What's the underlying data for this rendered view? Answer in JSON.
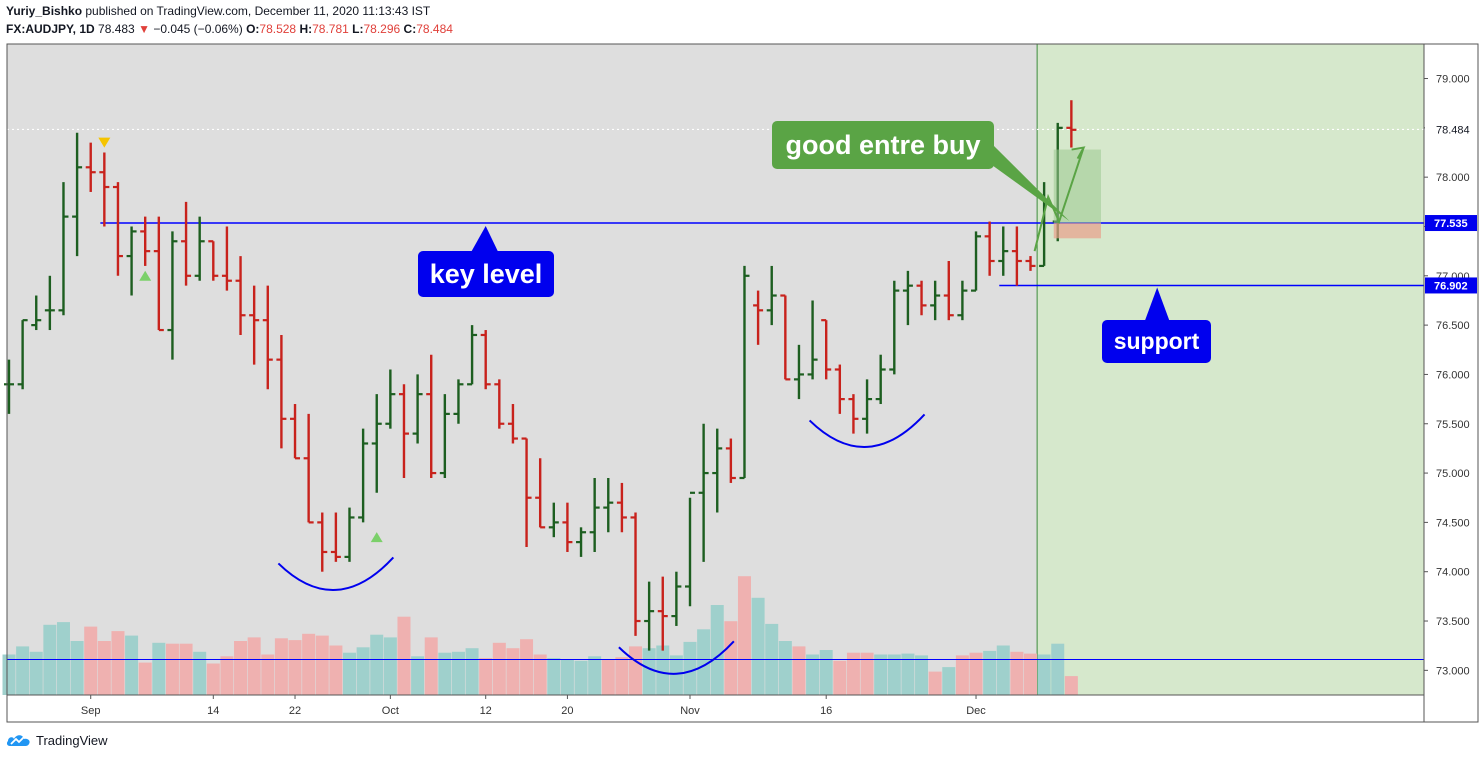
{
  "header": {
    "author": "Yuriy_Bishko",
    "published": "published on TradingView.com, December 11, 2020 11:13:43 IST",
    "symbol": "FX:AUDJPY, 1D",
    "last": "78.483",
    "change_arrow": "▼",
    "change": "−0.045 (−0.06%)",
    "o_label": "O:",
    "o": "78.528",
    "h_label": "H:",
    "h": "78.781",
    "l_label": "L:",
    "l": "78.296",
    "c_label": "C:",
    "c": "78.484"
  },
  "footer": {
    "brand": "TradingView",
    "logo_icon": "tradingview-cloud-icon"
  },
  "annotations": {
    "key_level": "key level",
    "support": "support",
    "buy": "good entre buy"
  },
  "colors": {
    "up": "#1d5e20",
    "down": "#c8221c",
    "vol_up": "#9fd0cc",
    "vol_down": "#efb1b0",
    "level_line": "#0000ff",
    "forecast_bg": "#d6e8cc",
    "plot_bg": "#dedede",
    "callout_blue": "#0000ee",
    "callout_green": "#5aa445"
  },
  "chart_data": {
    "type": "ohlc_bar",
    "symbol": "FX:AUDJPY",
    "interval": "1D",
    "ylim": [
      72.75,
      79.35
    ],
    "y_ticks": [
      "79.000",
      "78.500",
      "78.000",
      "77.500",
      "77.000",
      "76.500",
      "76.000",
      "75.500",
      "75.000",
      "74.500",
      "74.000",
      "73.500",
      "73.000"
    ],
    "y_tick_values": [
      79.0,
      78.5,
      78.0,
      77.5,
      77.0,
      76.5,
      76.0,
      75.5,
      75.0,
      74.5,
      74.0,
      73.5,
      73.0
    ],
    "x_ticks": [
      "Sep",
      "14",
      "22",
      "Oct",
      "12",
      "20",
      "Nov",
      "16",
      "Dec"
    ],
    "x_tick_bar_index": [
      6,
      15,
      21,
      28,
      35,
      41,
      50,
      60,
      71
    ],
    "price_labels": [
      {
        "text": "78.484",
        "value": 78.484,
        "style": "plain"
      },
      {
        "text": "77.535",
        "value": 77.535,
        "style": "box"
      },
      {
        "text": "76.902",
        "value": 76.902,
        "style": "box"
      }
    ],
    "levels": [
      {
        "name": "key level",
        "value": 77.535,
        "from_bar": 7
      },
      {
        "name": "support",
        "value": 76.902,
        "from_bar": 73
      },
      {
        "name": "volume line",
        "value": 73.11,
        "from_bar": 0
      }
    ],
    "forecast_from_bar": 76,
    "bars": [
      {
        "o": 75.9,
        "h": 76.15,
        "l": 75.6,
        "c": 75.9
      },
      {
        "o": 75.9,
        "h": 76.55,
        "l": 75.85,
        "c": 76.55
      },
      {
        "o": 76.5,
        "h": 76.8,
        "l": 76.45,
        "c": 76.55
      },
      {
        "o": 76.65,
        "h": 77.0,
        "l": 76.45,
        "c": 76.65
      },
      {
        "o": 76.65,
        "h": 77.95,
        "l": 76.6,
        "c": 77.6
      },
      {
        "o": 77.6,
        "h": 78.45,
        "l": 77.2,
        "c": 78.1
      },
      {
        "o": 78.1,
        "h": 78.35,
        "l": 77.85,
        "c": 78.05
      },
      {
        "o": 78.05,
        "h": 78.25,
        "l": 77.5,
        "c": 77.9
      },
      {
        "o": 77.9,
        "h": 77.95,
        "l": 77.0,
        "c": 77.2
      },
      {
        "o": 77.2,
        "h": 77.5,
        "l": 76.8,
        "c": 77.45
      },
      {
        "o": 77.45,
        "h": 77.6,
        "l": 77.1,
        "c": 77.25
      },
      {
        "o": 77.25,
        "h": 77.6,
        "l": 76.45,
        "c": 76.45
      },
      {
        "o": 76.45,
        "h": 77.45,
        "l": 76.15,
        "c": 77.35
      },
      {
        "o": 77.35,
        "h": 77.75,
        "l": 76.9,
        "c": 77.0
      },
      {
        "o": 77.0,
        "h": 77.6,
        "l": 76.95,
        "c": 77.35
      },
      {
        "o": 77.35,
        "h": 77.35,
        "l": 76.95,
        "c": 77.0
      },
      {
        "o": 77.0,
        "h": 77.5,
        "l": 76.85,
        "c": 76.95
      },
      {
        "o": 76.95,
        "h": 77.2,
        "l": 76.4,
        "c": 76.6
      },
      {
        "o": 76.6,
        "h": 76.9,
        "l": 76.1,
        "c": 76.55
      },
      {
        "o": 76.55,
        "h": 76.9,
        "l": 75.85,
        "c": 76.15
      },
      {
        "o": 76.15,
        "h": 76.4,
        "l": 75.25,
        "c": 75.55
      },
      {
        "o": 75.55,
        "h": 75.7,
        "l": 75.15,
        "c": 75.15
      },
      {
        "o": 75.15,
        "h": 75.6,
        "l": 74.5,
        "c": 74.5
      },
      {
        "o": 74.5,
        "h": 74.6,
        "l": 74.0,
        "c": 74.2
      },
      {
        "o": 74.2,
        "h": 74.6,
        "l": 74.1,
        "c": 74.15
      },
      {
        "o": 74.15,
        "h": 74.65,
        "l": 74.1,
        "c": 74.55
      },
      {
        "o": 74.55,
        "h": 75.45,
        "l": 74.5,
        "c": 75.3
      },
      {
        "o": 75.3,
        "h": 75.8,
        "l": 74.8,
        "c": 75.5
      },
      {
        "o": 75.5,
        "h": 76.05,
        "l": 75.45,
        "c": 75.8
      },
      {
        "o": 75.8,
        "h": 75.9,
        "l": 74.95,
        "c": 75.4
      },
      {
        "o": 75.4,
        "h": 76.0,
        "l": 75.3,
        "c": 75.8
      },
      {
        "o": 75.8,
        "h": 76.2,
        "l": 74.95,
        "c": 75.0
      },
      {
        "o": 75.0,
        "h": 75.8,
        "l": 74.95,
        "c": 75.6
      },
      {
        "o": 75.6,
        "h": 75.95,
        "l": 75.5,
        "c": 75.9
      },
      {
        "o": 75.9,
        "h": 76.5,
        "l": 75.9,
        "c": 76.4
      },
      {
        "o": 76.4,
        "h": 76.45,
        "l": 75.85,
        "c": 75.9
      },
      {
        "o": 75.9,
        "h": 75.95,
        "l": 75.45,
        "c": 75.5
      },
      {
        "o": 75.5,
        "h": 75.7,
        "l": 75.3,
        "c": 75.35
      },
      {
        "o": 75.35,
        "h": 75.35,
        "l": 74.25,
        "c": 74.75
      },
      {
        "o": 74.75,
        "h": 75.15,
        "l": 74.45,
        "c": 74.45
      },
      {
        "o": 74.45,
        "h": 74.7,
        "l": 74.35,
        "c": 74.5
      },
      {
        "o": 74.5,
        "h": 74.7,
        "l": 74.2,
        "c": 74.3
      },
      {
        "o": 74.3,
        "h": 74.45,
        "l": 74.15,
        "c": 74.4
      },
      {
        "o": 74.4,
        "h": 74.95,
        "l": 74.2,
        "c": 74.65
      },
      {
        "o": 74.65,
        "h": 74.95,
        "l": 74.4,
        "c": 74.7
      },
      {
        "o": 74.7,
        "h": 74.9,
        "l": 74.4,
        "c": 74.55
      },
      {
        "o": 74.55,
        "h": 74.6,
        "l": 73.35,
        "c": 73.5
      },
      {
        "o": 73.5,
        "h": 73.9,
        "l": 73.2,
        "c": 73.6
      },
      {
        "o": 73.6,
        "h": 73.95,
        "l": 73.2,
        "c": 73.55
      },
      {
        "o": 73.55,
        "h": 74.0,
        "l": 73.45,
        "c": 73.85
      },
      {
        "o": 73.85,
        "h": 74.75,
        "l": 73.65,
        "c": 74.8
      },
      {
        "o": 74.8,
        "h": 75.5,
        "l": 74.1,
        "c": 75.0
      },
      {
        "o": 75.0,
        "h": 75.45,
        "l": 74.6,
        "c": 75.25
      },
      {
        "o": 75.25,
        "h": 75.35,
        "l": 74.9,
        "c": 74.95
      },
      {
        "o": 74.95,
        "h": 77.1,
        "l": 74.95,
        "c": 77.0
      },
      {
        "o": 76.7,
        "h": 76.85,
        "l": 76.3,
        "c": 76.65
      },
      {
        "o": 76.65,
        "h": 77.1,
        "l": 76.5,
        "c": 76.8
      },
      {
        "o": 76.8,
        "h": 76.8,
        "l": 75.95,
        "c": 75.95
      },
      {
        "o": 75.95,
        "h": 76.3,
        "l": 75.75,
        "c": 76.0
      },
      {
        "o": 76.0,
        "h": 76.75,
        "l": 75.95,
        "c": 76.15
      },
      {
        "o": 76.55,
        "h": 76.55,
        "l": 75.95,
        "c": 76.05
      },
      {
        "o": 76.05,
        "h": 76.1,
        "l": 75.6,
        "c": 75.75
      },
      {
        "o": 75.75,
        "h": 75.8,
        "l": 75.4,
        "c": 75.55
      },
      {
        "o": 75.55,
        "h": 75.95,
        "l": 75.4,
        "c": 75.75
      },
      {
        "o": 75.75,
        "h": 76.2,
        "l": 75.7,
        "c": 76.05
      },
      {
        "o": 76.05,
        "h": 76.95,
        "l": 76.0,
        "c": 76.85
      },
      {
        "o": 76.85,
        "h": 77.05,
        "l": 76.5,
        "c": 76.9
      },
      {
        "o": 76.9,
        "h": 76.95,
        "l": 76.6,
        "c": 76.7
      },
      {
        "o": 76.7,
        "h": 76.95,
        "l": 76.55,
        "c": 76.8
      },
      {
        "o": 76.8,
        "h": 77.15,
        "l": 76.55,
        "c": 76.6
      },
      {
        "o": 76.6,
        "h": 76.95,
        "l": 76.55,
        "c": 76.85
      },
      {
        "o": 76.85,
        "h": 77.45,
        "l": 76.85,
        "c": 77.4
      },
      {
        "o": 77.4,
        "h": 77.55,
        "l": 77.0,
        "c": 77.15
      },
      {
        "o": 77.15,
        "h": 77.5,
        "l": 77.0,
        "c": 77.25
      },
      {
        "o": 77.25,
        "h": 77.5,
        "l": 76.9,
        "c": 77.15
      },
      {
        "o": 77.15,
        "h": 77.2,
        "l": 77.05,
        "c": 77.1
      },
      {
        "o": 77.1,
        "h": 77.95,
        "l": 77.1,
        "c": 77.75
      },
      {
        "o": 77.55,
        "h": 78.55,
        "l": 77.35,
        "c": 78.5
      },
      {
        "o": 78.5,
        "h": 78.78,
        "l": 78.3,
        "c": 78.48
      }
    ],
    "volume": [
      {
        "v": 0.45,
        "up": true
      },
      {
        "v": 0.54,
        "up": true
      },
      {
        "v": 0.48,
        "up": true
      },
      {
        "v": 0.78,
        "up": true
      },
      {
        "v": 0.81,
        "up": true
      },
      {
        "v": 0.6,
        "up": true
      },
      {
        "v": 0.76,
        "up": false
      },
      {
        "v": 0.6,
        "up": false
      },
      {
        "v": 0.71,
        "up": false
      },
      {
        "v": 0.66,
        "up": true
      },
      {
        "v": 0.36,
        "up": false
      },
      {
        "v": 0.58,
        "up": true
      },
      {
        "v": 0.57,
        "up": false
      },
      {
        "v": 0.57,
        "up": false
      },
      {
        "v": 0.48,
        "up": true
      },
      {
        "v": 0.35,
        "up": false
      },
      {
        "v": 0.43,
        "up": false
      },
      {
        "v": 0.6,
        "up": false
      },
      {
        "v": 0.64,
        "up": false
      },
      {
        "v": 0.45,
        "up": false
      },
      {
        "v": 0.63,
        "up": false
      },
      {
        "v": 0.61,
        "up": false
      },
      {
        "v": 0.68,
        "up": false
      },
      {
        "v": 0.66,
        "up": false
      },
      {
        "v": 0.55,
        "up": false
      },
      {
        "v": 0.47,
        "up": true
      },
      {
        "v": 0.53,
        "up": true
      },
      {
        "v": 0.67,
        "up": true
      },
      {
        "v": 0.64,
        "up": true
      },
      {
        "v": 0.87,
        "up": false
      },
      {
        "v": 0.43,
        "up": true
      },
      {
        "v": 0.64,
        "up": false
      },
      {
        "v": 0.47,
        "up": true
      },
      {
        "v": 0.48,
        "up": true
      },
      {
        "v": 0.52,
        "up": true
      },
      {
        "v": 0.41,
        "up": false
      },
      {
        "v": 0.58,
        "up": false
      },
      {
        "v": 0.52,
        "up": false
      },
      {
        "v": 0.62,
        "up": false
      },
      {
        "v": 0.45,
        "up": false
      },
      {
        "v": 0.41,
        "up": true
      },
      {
        "v": 0.39,
        "up": true
      },
      {
        "v": 0.38,
        "up": true
      },
      {
        "v": 0.43,
        "up": true
      },
      {
        "v": 0.39,
        "up": false
      },
      {
        "v": 0.42,
        "up": false
      },
      {
        "v": 0.54,
        "up": false
      },
      {
        "v": 0.52,
        "up": true
      },
      {
        "v": 0.55,
        "up": true
      },
      {
        "v": 0.44,
        "up": true
      },
      {
        "v": 0.59,
        "up": true
      },
      {
        "v": 0.73,
        "up": true
      },
      {
        "v": 1.0,
        "up": true
      },
      {
        "v": 0.82,
        "up": false
      },
      {
        "v": 1.32,
        "up": false
      },
      {
        "v": 1.08,
        "up": true
      },
      {
        "v": 0.79,
        "up": true
      },
      {
        "v": 0.6,
        "up": true
      },
      {
        "v": 0.54,
        "up": false
      },
      {
        "v": 0.45,
        "up": true
      },
      {
        "v": 0.5,
        "up": true
      },
      {
        "v": 0.38,
        "up": false
      },
      {
        "v": 0.47,
        "up": false
      },
      {
        "v": 0.47,
        "up": false
      },
      {
        "v": 0.45,
        "up": true
      },
      {
        "v": 0.45,
        "up": true
      },
      {
        "v": 0.46,
        "up": true
      },
      {
        "v": 0.44,
        "up": true
      },
      {
        "v": 0.26,
        "up": false
      },
      {
        "v": 0.31,
        "up": true
      },
      {
        "v": 0.44,
        "up": false
      },
      {
        "v": 0.47,
        "up": false
      },
      {
        "v": 0.49,
        "up": true
      },
      {
        "v": 0.55,
        "up": true
      },
      {
        "v": 0.48,
        "up": false
      },
      {
        "v": 0.46,
        "up": false
      },
      {
        "v": 0.45,
        "up": true
      },
      {
        "v": 0.57,
        "up": true
      },
      {
        "v": 0.21,
        "up": false
      }
    ],
    "markers": [
      {
        "bar": 7,
        "type": "sell",
        "value": 78.35
      },
      {
        "bar": 10,
        "type": "buy",
        "value": 77.0
      },
      {
        "bar": 27,
        "type": "buy",
        "value": 74.35
      }
    ],
    "patterns": [
      {
        "type": "rounded-bottom",
        "from_bar": 20,
        "to_bar": 28,
        "low": 73.8
      },
      {
        "type": "rounded-bottom",
        "from_bar": 45,
        "to_bar": 53,
        "low": 72.95
      },
      {
        "type": "rounded-bottom",
        "from_bar": 59,
        "to_bar": 67,
        "low": 75.25
      }
    ],
    "trade": {
      "entry": 77.535,
      "target": 78.28,
      "stop": 77.38,
      "path": [
        {
          "bar": 75.3,
          "value": 77.25
        },
        {
          "bar": 76.3,
          "value": 77.8
        },
        {
          "bar": 77.1,
          "value": 77.55
        },
        {
          "bar": 78.9,
          "value": 78.3
        }
      ]
    }
  }
}
